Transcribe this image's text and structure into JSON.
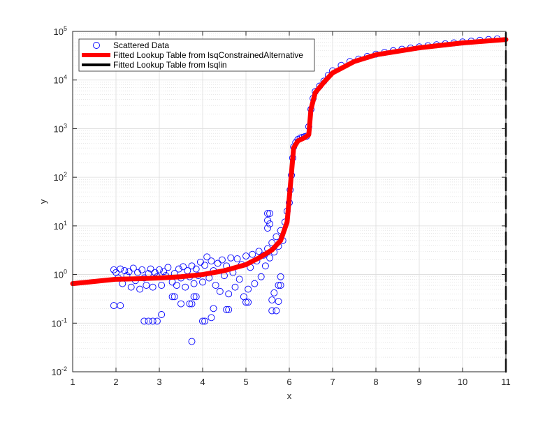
{
  "chart_data": {
    "type": "scatter",
    "title": "",
    "xlabel": "x",
    "ylabel": "y",
    "xlim": [
      1,
      11
    ],
    "ylim": [
      0.01,
      100000
    ],
    "yscale": "log",
    "grid": true,
    "minor_grid": true,
    "legend_position": "top-left",
    "x_ticks": [
      {
        "value": 1,
        "label": "1"
      },
      {
        "value": 2,
        "label": "2"
      },
      {
        "value": 3,
        "label": "3"
      },
      {
        "value": 4,
        "label": "4"
      },
      {
        "value": 5,
        "label": "5"
      },
      {
        "value": 6,
        "label": "6"
      },
      {
        "value": 7,
        "label": "7"
      },
      {
        "value": 8,
        "label": "8"
      },
      {
        "value": 9,
        "label": "9"
      },
      {
        "value": 10,
        "label": "10"
      },
      {
        "value": 11,
        "label": "11"
      }
    ],
    "y_ticks": [
      {
        "value": 0.01,
        "base": "10",
        "exp": "-2"
      },
      {
        "value": 0.1,
        "base": "10",
        "exp": "-1"
      },
      {
        "value": 1,
        "base": "10",
        "exp": "0"
      },
      {
        "value": 10,
        "base": "10",
        "exp": "1"
      },
      {
        "value": 100,
        "base": "10",
        "exp": "2"
      },
      {
        "value": 1000,
        "base": "10",
        "exp": "3"
      },
      {
        "value": 10000,
        "base": "10",
        "exp": "4"
      },
      {
        "value": 100000,
        "base": "10",
        "exp": "5"
      }
    ],
    "series": [
      {
        "name": "Scattered Data",
        "kind": "scatter",
        "marker": "open-circle",
        "color": "#0000ff",
        "points": [
          [
            1.95,
            1.25
          ],
          [
            2.0,
            1.1
          ],
          [
            2.05,
            0.85
          ],
          [
            2.1,
            1.3
          ],
          [
            2.15,
            0.65
          ],
          [
            2.2,
            1.2
          ],
          [
            2.25,
            0.95
          ],
          [
            2.3,
            1.15
          ],
          [
            2.35,
            0.55
          ],
          [
            2.4,
            1.35
          ],
          [
            2.45,
            0.75
          ],
          [
            2.5,
            1.1
          ],
          [
            2.55,
            0.5
          ],
          [
            2.6,
            1.25
          ],
          [
            2.65,
            0.85
          ],
          [
            2.7,
            0.6
          ],
          [
            2.75,
            1.05
          ],
          [
            2.8,
            1.3
          ],
          [
            2.85,
            0.55
          ],
          [
            2.9,
            1.1
          ],
          [
            2.95,
            0.9
          ],
          [
            3.0,
            1.25
          ],
          [
            3.05,
            0.6
          ],
          [
            3.1,
            1.15
          ],
          [
            3.15,
            0.95
          ],
          [
            3.2,
            1.4
          ],
          [
            3.3,
            0.7
          ],
          [
            3.35,
            1.05
          ],
          [
            3.4,
            0.6
          ],
          [
            3.45,
            1.3
          ],
          [
            3.5,
            0.85
          ],
          [
            3.55,
            1.45
          ],
          [
            3.6,
            0.55
          ],
          [
            3.65,
            1.2
          ],
          [
            3.7,
            0.9
          ],
          [
            3.75,
            1.5
          ],
          [
            3.8,
            0.65
          ],
          [
            3.85,
            1.3
          ],
          [
            3.9,
            0.95
          ],
          [
            3.95,
            1.8
          ],
          [
            4.0,
            0.7
          ],
          [
            4.05,
            1.55
          ],
          [
            4.1,
            2.3
          ],
          [
            4.15,
            0.85
          ],
          [
            4.2,
            1.9
          ],
          [
            4.25,
            1.2
          ],
          [
            4.3,
            0.6
          ],
          [
            4.35,
            1.7
          ],
          [
            4.4,
            0.45
          ],
          [
            4.45,
            2.0
          ],
          [
            4.5,
            0.95
          ],
          [
            4.55,
            1.5
          ],
          [
            4.6,
            0.4
          ],
          [
            4.65,
            2.2
          ],
          [
            4.7,
            1.1
          ],
          [
            4.75,
            0.55
          ],
          [
            4.8,
            2.1
          ],
          [
            4.85,
            0.8
          ],
          [
            4.9,
            1.6
          ],
          [
            4.95,
            0.35
          ],
          [
            5.0,
            2.4
          ],
          [
            5.05,
            0.5
          ],
          [
            5.1,
            1.4
          ],
          [
            5.15,
            2.6
          ],
          [
            5.2,
            0.65
          ],
          [
            5.25,
            1.9
          ],
          [
            5.3,
            3.0
          ],
          [
            5.35,
            0.9
          ],
          [
            5.4,
            2.5
          ],
          [
            5.45,
            1.5
          ],
          [
            5.5,
            3.4
          ],
          [
            5.55,
            2.2
          ],
          [
            5.6,
            4.5
          ],
          [
            5.65,
            2.9
          ],
          [
            5.7,
            6.0
          ],
          [
            5.75,
            3.8
          ],
          [
            5.8,
            8.0
          ],
          [
            5.85,
            5.0
          ],
          [
            5.9,
            12.0
          ],
          [
            5.95,
            20.0
          ],
          [
            6.0,
            30.0
          ],
          [
            6.02,
            55.0
          ],
          [
            6.05,
            110.0
          ],
          [
            6.08,
            250.0
          ],
          [
            6.1,
            420.0
          ],
          [
            6.15,
            520.0
          ],
          [
            6.2,
            600.0
          ],
          [
            6.25,
            640.0
          ],
          [
            6.3,
            660.0
          ],
          [
            6.35,
            680.0
          ],
          [
            6.4,
            700.0
          ],
          [
            6.45,
            1100.0
          ],
          [
            6.5,
            2500.0
          ],
          [
            6.55,
            4200.0
          ],
          [
            6.6,
            5800.0
          ],
          [
            6.7,
            7500.0
          ],
          [
            6.8,
            9500.0
          ],
          [
            6.9,
            12500.0
          ],
          [
            7.0,
            15500.0
          ],
          [
            7.2,
            20000.0
          ],
          [
            7.4,
            24000.0
          ],
          [
            7.6,
            27000.0
          ],
          [
            7.8,
            30500.0
          ],
          [
            8.0,
            34000.0
          ],
          [
            8.2,
            37000.0
          ],
          [
            8.4,
            40000.0
          ],
          [
            8.6,
            43000.0
          ],
          [
            8.8,
            45500.0
          ],
          [
            9.0,
            48000.0
          ],
          [
            9.2,
            50500.0
          ],
          [
            9.4,
            53000.0
          ],
          [
            9.6,
            55500.0
          ],
          [
            9.8,
            58000.0
          ],
          [
            10.0,
            60500.0
          ],
          [
            10.2,
            63000.0
          ],
          [
            10.4,
            65500.0
          ],
          [
            10.6,
            68000.0
          ],
          [
            10.8,
            70000.0
          ],
          [
            2.65,
            0.11
          ],
          [
            2.75,
            0.11
          ],
          [
            2.85,
            0.11
          ],
          [
            2.95,
            0.11
          ],
          [
            3.05,
            0.15
          ],
          [
            3.75,
            0.042
          ],
          [
            4.0,
            0.11
          ],
          [
            4.05,
            0.11
          ],
          [
            4.2,
            0.13
          ],
          [
            4.25,
            0.2
          ],
          [
            4.55,
            0.19
          ],
          [
            4.6,
            0.19
          ],
          [
            5.0,
            0.27
          ],
          [
            5.05,
            0.27
          ],
          [
            5.6,
            0.18
          ],
          [
            5.7,
            0.18
          ],
          [
            5.75,
            0.28
          ],
          [
            5.8,
            0.6
          ],
          [
            5.75,
            0.6
          ],
          [
            5.8,
            0.9
          ],
          [
            5.6,
            0.3
          ],
          [
            5.65,
            0.42
          ],
          [
            5.5,
            18.0
          ],
          [
            5.55,
            18.0
          ],
          [
            5.5,
            13.0
          ],
          [
            5.55,
            11.0
          ],
          [
            5.5,
            9.0
          ],
          [
            1.95,
            0.23
          ],
          [
            2.1,
            0.23
          ],
          [
            3.7,
            0.25
          ],
          [
            3.75,
            0.25
          ],
          [
            3.8,
            0.35
          ],
          [
            3.85,
            0.35
          ],
          [
            3.5,
            0.25
          ],
          [
            3.3,
            0.35
          ],
          [
            3.35,
            0.35
          ]
        ]
      },
      {
        "name": "Fitted Lookup Table from lsqConstrainedAlternative",
        "kind": "line",
        "color": "#ff0000",
        "width": "thick",
        "points": [
          [
            1,
            0.65
          ],
          [
            1.5,
            0.72
          ],
          [
            2,
            0.8
          ],
          [
            2.5,
            0.82
          ],
          [
            3,
            0.85
          ],
          [
            3.5,
            0.9
          ],
          [
            4,
            1.0
          ],
          [
            4.5,
            1.2
          ],
          [
            5,
            1.6
          ],
          [
            5.3,
            2.2
          ],
          [
            5.6,
            3.2
          ],
          [
            5.8,
            5.0
          ],
          [
            5.95,
            12.0
          ],
          [
            6.05,
            120.0
          ],
          [
            6.1,
            400.0
          ],
          [
            6.2,
            560.0
          ],
          [
            6.35,
            650.0
          ],
          [
            6.45,
            750.0
          ],
          [
            6.5,
            2500.0
          ],
          [
            6.6,
            5500.0
          ],
          [
            6.8,
            9000.0
          ],
          [
            7.0,
            14000.0
          ],
          [
            7.5,
            24000.0
          ],
          [
            8.0,
            33000.0
          ],
          [
            9.0,
            46000.0
          ],
          [
            10.0,
            58000.0
          ],
          [
            11.0,
            68000.0
          ]
        ]
      },
      {
        "name": "Fitted Lookup Table from lsqlin",
        "kind": "line",
        "color": "#000000",
        "width": "thick",
        "points": [
          [
            11,
            0.01
          ],
          [
            11,
            100000
          ]
        ],
        "dash": true
      }
    ]
  }
}
